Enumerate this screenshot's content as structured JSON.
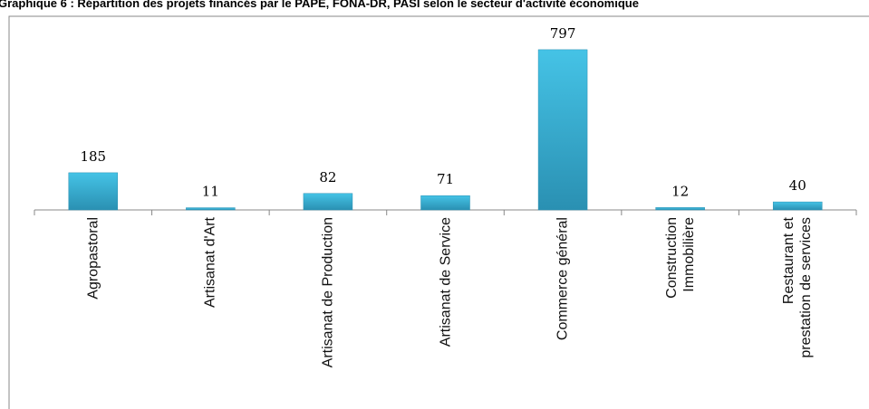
{
  "chart_data": {
    "type": "bar",
    "title": "Graphique 6 : Répartition des projets financés par le PAPE, FONA-DR, PASI selon le secteur d'activité économique",
    "categories": [
      "Agropastoral",
      "Artisanat d'Art",
      "Artisanat de Production",
      "Artisanat de Service",
      "Commerce général",
      "Construction\nImmobilière",
      "Restaurant et\nprestation de services"
    ],
    "values": [
      185,
      11,
      82,
      71,
      797,
      12,
      40
    ],
    "color": "#35b2d6",
    "ylim": [
      0,
      900
    ]
  }
}
